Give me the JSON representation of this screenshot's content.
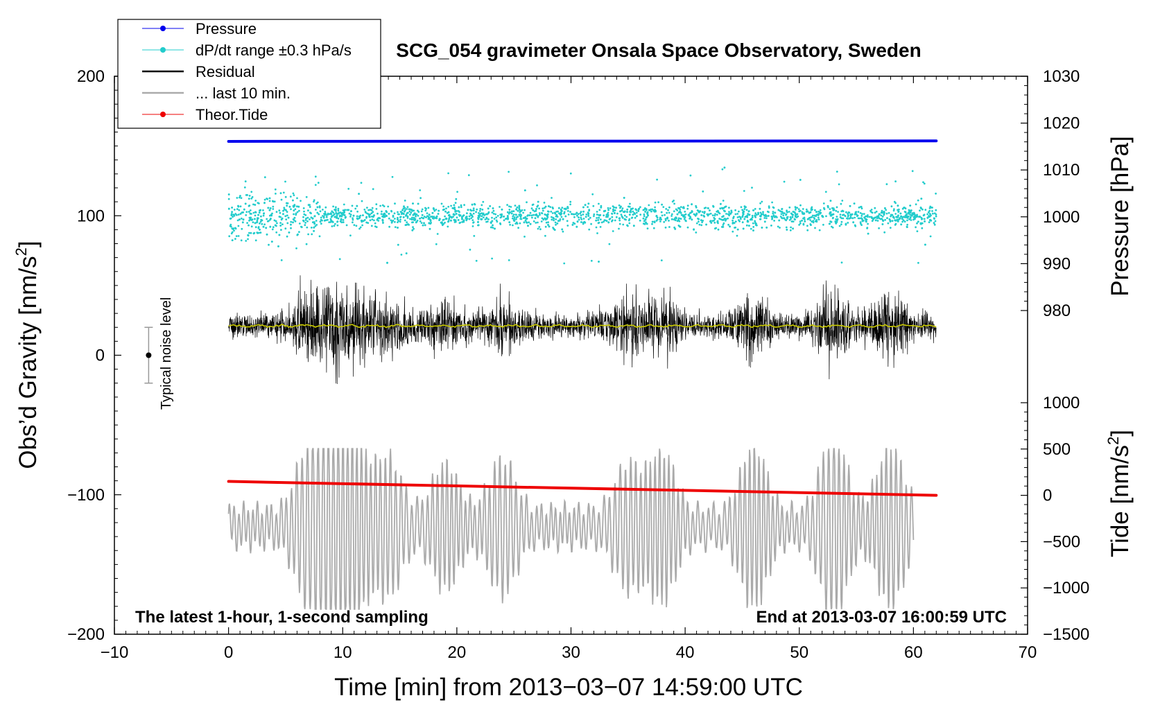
{
  "chart_data": {
    "type": "line",
    "title": "SCG_054 gravimeter Onsala Space Observatory, Sweden",
    "xlabel": "Time [min] from 2013−03−07 14:59:00 UTC",
    "ylabel_left_main": "Obs’d Gravity [nm/s",
    "ylabel_left_sup": "2",
    "ylabel_left_end": "]",
    "ylabel_right_pressure": "Pressure [hPa]",
    "ylabel_right_tide_main": "Tide [nm/s",
    "ylabel_right_tide_sup": "2",
    "ylabel_right_tide_end": "]",
    "xlim": [
      -10,
      70
    ],
    "ylim_gravity": [
      -200,
      200
    ],
    "ylim_pressure": [
      980,
      1030
    ],
    "ylim_tide": [
      -1500,
      1000
    ],
    "x_ticks": [
      "−10",
      "0",
      "10",
      "20",
      "30",
      "40",
      "50",
      "60",
      "70"
    ],
    "y_ticks_left": [
      "200",
      "100",
      "0",
      "−100",
      "−200"
    ],
    "y_ticks_pressure": [
      "1030",
      "1020",
      "1010",
      "1000",
      "990",
      "980"
    ],
    "y_ticks_tide": [
      "1000",
      "500",
      "0",
      "−500",
      "−1000",
      "−1500"
    ],
    "legend": [
      {
        "label": "Pressure",
        "color": "#0000ee",
        "marker": "dot"
      },
      {
        "label": "dP/dt range ±0.3 hPa/s",
        "color": "#22cccc",
        "marker": "dot"
      },
      {
        "label": "Residual",
        "color": "#000000",
        "marker": "line"
      },
      {
        "label": "... last 10 min.",
        "color": "#aaaaaa",
        "marker": "line"
      },
      {
        "label": "Theor.Tide",
        "color": "#ee0000",
        "marker": "dot"
      }
    ],
    "legend_position": "top-left",
    "series": [
      {
        "name": "Pressure",
        "axis": "pressure",
        "color": "#0000ee",
        "x": [
          0,
          62
        ],
        "y": [
          1016.1,
          1016.2
        ]
      },
      {
        "name": "dP/dt range",
        "axis": "gravity",
        "color": "#22cccc",
        "center": 100,
        "x_range": [
          0,
          62
        ]
      },
      {
        "name": "Residual",
        "axis": "gravity",
        "color": "#000000",
        "center": 21,
        "x_range": [
          0,
          62
        ],
        "min": -33,
        "max": 76
      },
      {
        "name": "Residual mean",
        "axis": "gravity",
        "color": "#cccc00",
        "center": 21,
        "x_range": [
          0,
          62
        ]
      },
      {
        "name": "... last 10 min.",
        "axis": "gravity",
        "color": "#aaaaaa",
        "center": -123,
        "x_range": [
          0,
          60
        ],
        "min": -182,
        "max": -67
      },
      {
        "name": "Theor.Tide",
        "axis": "tide",
        "color": "#ee0000",
        "x": [
          0,
          62
        ],
        "y": [
          150,
          0
        ]
      }
    ],
    "noise_bar": {
      "label": "Typical noise level",
      "x": -7,
      "center": 0,
      "half_range": 20
    },
    "annotation_left": "The latest 1-hour, 1-second sampling",
    "annotation_right": "End at 2013-03-07 16:00:59 UTC"
  }
}
